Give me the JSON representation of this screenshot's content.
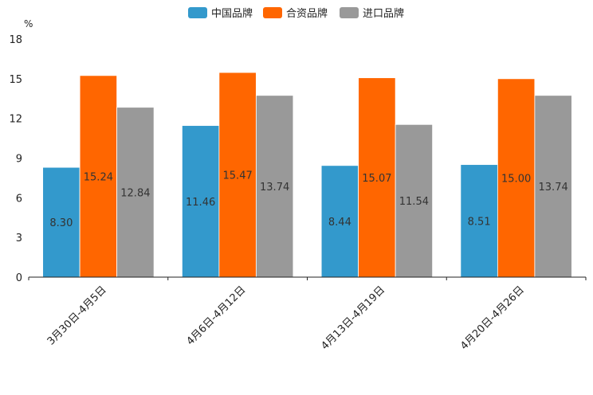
{
  "chart_data": {
    "type": "bar",
    "unit": "%",
    "categories": [
      "3月30日-4月5日",
      "4月6日-4月12日",
      "4月13日-4月19日",
      "4月20日-4月26日"
    ],
    "series": [
      {
        "name": "中国品牌",
        "color": "#3399cc",
        "values": [
          8.3,
          11.46,
          8.44,
          8.51
        ]
      },
      {
        "name": "合资品牌",
        "color": "#ff6600",
        "values": [
          15.24,
          15.47,
          15.07,
          15.0
        ]
      },
      {
        "name": "进口品牌",
        "color": "#999999",
        "values": [
          12.84,
          13.74,
          11.54,
          13.74
        ]
      }
    ],
    "ylim": [
      0,
      18
    ],
    "yticks": [
      0,
      3,
      6,
      9,
      12,
      15,
      18
    ],
    "legend_position": "top-center"
  }
}
